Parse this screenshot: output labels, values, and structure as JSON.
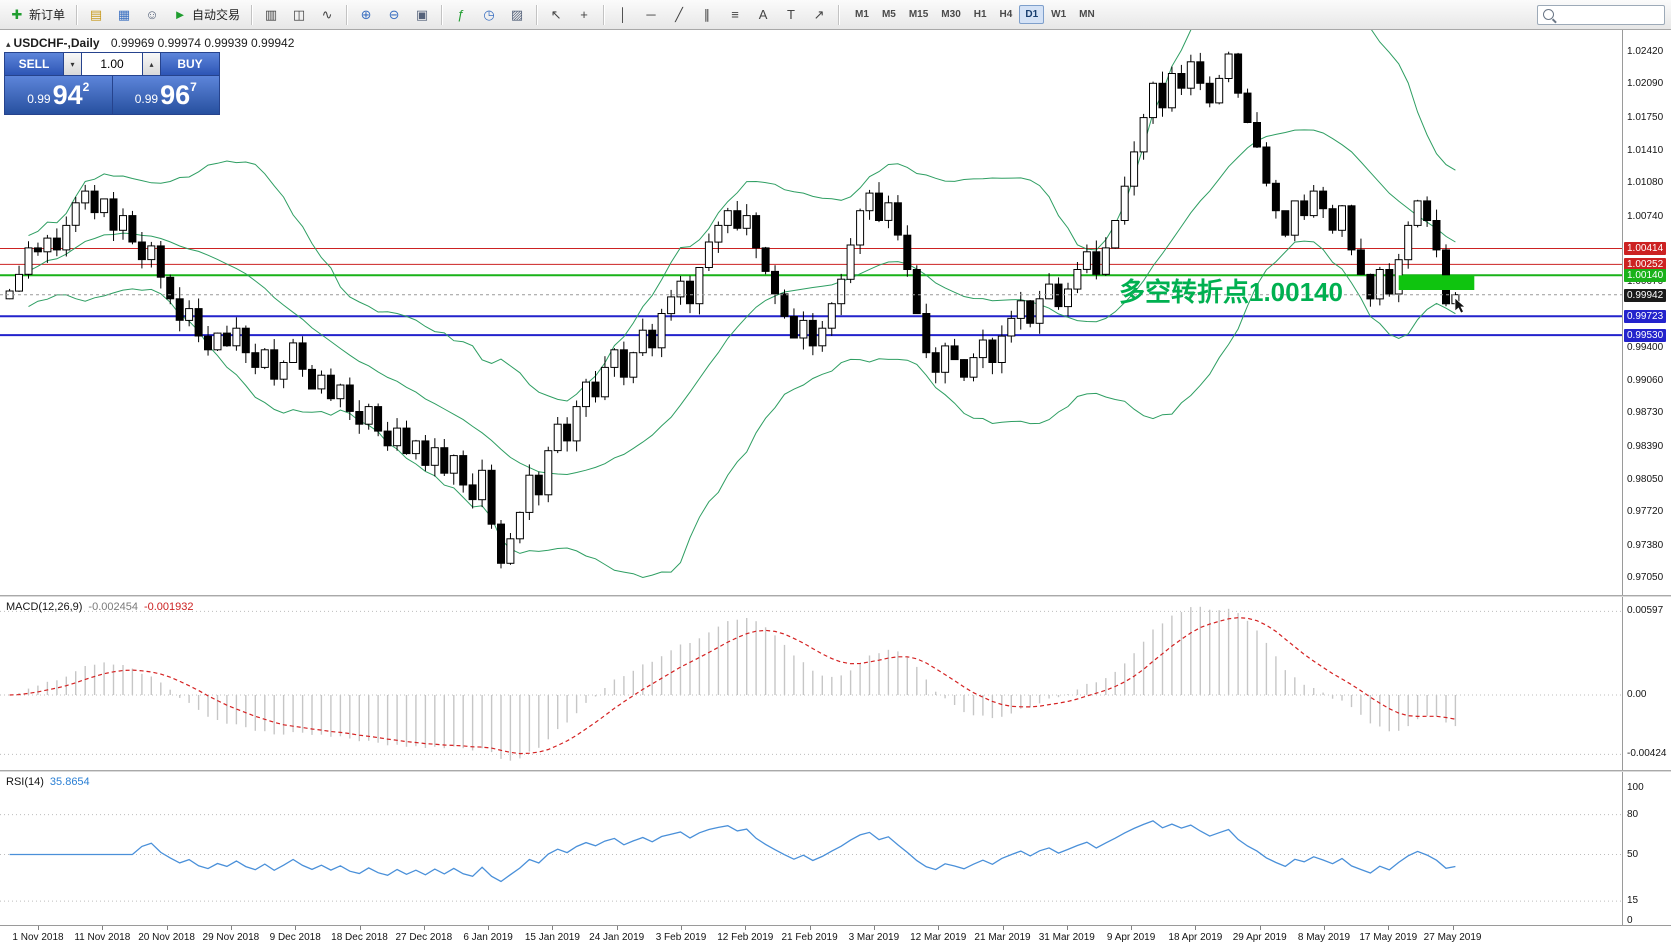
{
  "toolbar": {
    "new_order_label": "新订单",
    "auto_trading_label": "自动交易",
    "timeframes": [
      "M1",
      "M5",
      "M15",
      "M30",
      "H1",
      "H4",
      "D1",
      "W1",
      "MN"
    ],
    "active_timeframe": "D1"
  },
  "icons": {
    "new_order": "✚",
    "market_watch": "▤",
    "data_window": "▦",
    "navigator": "☺",
    "auto_trading": "►",
    "bar_chart": "▥",
    "candlestick": "◫",
    "line_chart": "∿",
    "zoom_in": "⊕",
    "zoom_out": "⊖",
    "tile_windows": "▣",
    "indicators": "ƒ",
    "periods": "◷",
    "templates": "▨",
    "cursor": "↖",
    "crosshair": "+",
    "vline": "│",
    "hline": "─",
    "trendline": "╱",
    "channel": "∥",
    "fibonacci": "≡",
    "text_tool": "A",
    "label_tool": "T",
    "arrows_tool": "↗",
    "vol_down": "▾",
    "vol_up": "▴",
    "collapse": "▴"
  },
  "chart": {
    "symbol_label": "USDCHF-,Daily",
    "ohlc": "0.99969 0.99974 0.99939 0.99942"
  },
  "trade_panel": {
    "sell_label": "SELL",
    "buy_label": "BUY",
    "volume": "1.00",
    "bid": {
      "prefix": "0.99",
      "big": "94",
      "sup": "2"
    },
    "ask": {
      "prefix": "0.99",
      "big": "96",
      "sup": "7"
    }
  },
  "annotation": {
    "text": "多空转折点1.00140"
  },
  "price_axis": {
    "grid_labels": [
      {
        "price": 1.0242,
        "text": "1.02420"
      },
      {
        "price": 1.0209,
        "text": "1.02090"
      },
      {
        "price": 1.0175,
        "text": "1.01750"
      },
      {
        "price": 1.0141,
        "text": "1.01410"
      },
      {
        "price": 1.0108,
        "text": "1.01080"
      },
      {
        "price": 1.0074,
        "text": "1.00740"
      },
      {
        "price": 1.0007,
        "text": "1.00070"
      },
      {
        "price": 0.994,
        "text": "0.99400"
      },
      {
        "price": 0.9906,
        "text": "0.99060"
      },
      {
        "price": 0.9873,
        "text": "0.98730"
      },
      {
        "price": 0.9839,
        "text": "0.98390"
      },
      {
        "price": 0.9805,
        "text": "0.98050"
      },
      {
        "price": 0.9772,
        "text": "0.97720"
      },
      {
        "price": 0.9738,
        "text": "0.97380"
      },
      {
        "price": 0.9705,
        "text": "0.97050"
      }
    ],
    "line_labels": [
      {
        "price": 1.00414,
        "text": "1.00414",
        "color": "#cc2222"
      },
      {
        "price": 1.00252,
        "text": "1.00252",
        "color": "#cc2222"
      },
      {
        "price": 1.0014,
        "text": "1.00140",
        "color": "#19b219"
      },
      {
        "price": 0.99942,
        "text": "0.99942",
        "color": "#1a1a1a"
      },
      {
        "price": 0.99723,
        "text": "0.99723",
        "color": "#2323cc"
      },
      {
        "price": 0.9953,
        "text": "0.99530",
        "color": "#2323cc"
      }
    ]
  },
  "indicators": {
    "macd": {
      "label": "MACD(12,26,9)",
      "value1": "-0.002454",
      "value2": "-0.001932",
      "axis": [
        {
          "v": 0.00597,
          "text": "0.00597"
        },
        {
          "v": 0,
          "text": "0.00"
        },
        {
          "v": -0.00424,
          "text": "-0.00424"
        }
      ]
    },
    "rsi": {
      "label": "RSI(14)",
      "value": "35.8654",
      "axis": [
        {
          "v": 100,
          "text": "100"
        },
        {
          "v": 80,
          "text": "80"
        },
        {
          "v": 50,
          "text": "50"
        },
        {
          "v": 15,
          "text": "15"
        },
        {
          "v": 0,
          "text": "0"
        }
      ]
    }
  },
  "time_axis": {
    "labels": [
      "1 Nov 2018",
      "11 Nov 2018",
      "20 Nov 2018",
      "29 Nov 2018",
      "9 Dec 2018",
      "18 Dec 2018",
      "27 Dec 2018",
      "6 Jan 2019",
      "15 Jan 2019",
      "24 Jan 2019",
      "3 Feb 2019",
      "12 Feb 2019",
      "21 Feb 2019",
      "3 Mar 2019",
      "12 Mar 2019",
      "21 Mar 2019",
      "31 Mar 2019",
      "9 Apr 2019",
      "18 Apr 2019",
      "29 Apr 2019",
      "8 May 2019",
      "17 May 2019",
      "27 May 2019"
    ]
  },
  "chart_data": {
    "type": "candlestick",
    "symbol": "USDCHF-",
    "timeframe": "Daily",
    "price_range": {
      "top": 1.0242,
      "bottom": 0.9705
    },
    "current_price": 0.99942,
    "closes": [
      0.9998,
      1.0015,
      1.0042,
      1.0038,
      1.0052,
      1.004,
      1.0065,
      1.0088,
      1.01,
      1.0078,
      1.0092,
      1.006,
      1.0075,
      1.0048,
      1.003,
      1.0044,
      1.0012,
      0.999,
      0.9968,
      0.998,
      0.9952,
      0.9938,
      0.9955,
      0.9942,
      0.996,
      0.9935,
      0.992,
      0.9938,
      0.9908,
      0.9925,
      0.9945,
      0.9918,
      0.9898,
      0.9912,
      0.9888,
      0.9902,
      0.9875,
      0.9862,
      0.988,
      0.9855,
      0.984,
      0.9858,
      0.9832,
      0.9845,
      0.982,
      0.9838,
      0.9812,
      0.983,
      0.98,
      0.9785,
      0.9815,
      0.976,
      0.972,
      0.9745,
      0.9772,
      0.981,
      0.979,
      0.9835,
      0.9862,
      0.9845,
      0.988,
      0.9905,
      0.989,
      0.992,
      0.9938,
      0.991,
      0.9935,
      0.9958,
      0.994,
      0.9975,
      0.9992,
      1.0008,
      0.9985,
      1.0022,
      1.0048,
      1.0065,
      1.008,
      1.0062,
      1.0075,
      1.0042,
      1.0018,
      0.9995,
      0.9972,
      0.995,
      0.9968,
      0.9942,
      0.996,
      0.9985,
      1.001,
      1.0045,
      1.008,
      1.0098,
      1.007,
      1.0088,
      1.0055,
      1.002,
      0.9975,
      0.9935,
      0.9915,
      0.9942,
      0.9928,
      0.991,
      0.993,
      0.9948,
      0.9925,
      0.9952,
      0.997,
      0.9988,
      0.9965,
      0.999,
      1.0005,
      0.9982,
      1.0,
      1.002,
      1.0038,
      1.0015,
      1.0042,
      1.007,
      1.0105,
      1.014,
      1.0175,
      1.021,
      1.0185,
      1.022,
      1.0205,
      1.0232,
      1.021,
      1.019,
      1.0215,
      1.024,
      1.02,
      1.017,
      1.0145,
      1.0108,
      1.008,
      1.0055,
      1.009,
      1.0075,
      1.01,
      1.0082,
      1.006,
      1.0085,
      1.004,
      1.0015,
      0.999,
      1.002,
      0.9995,
      1.003,
      1.0065,
      1.009,
      1.007,
      1.004,
      0.9985,
      0.99942
    ],
    "hlines": [
      {
        "price": 1.00414,
        "color": "#cc2222",
        "width": 1
      },
      {
        "price": 1.00252,
        "color": "#cc2222",
        "width": 1
      },
      {
        "price": 1.0014,
        "color": "#19b219",
        "width": 2
      },
      {
        "price": 0.99723,
        "color": "#2323cc",
        "width": 2
      },
      {
        "price": 0.9953,
        "color": "#2323cc",
        "width": 2
      }
    ],
    "highlight_rect": {
      "price_top": 1.0014,
      "price_bottom": 0.9999,
      "bar_start": 147,
      "bar_end": 155,
      "color": "#0fc40f"
    },
    "bollinger": {
      "period": 20,
      "deviation": 2,
      "color": "#2e9e62"
    },
    "macd": {
      "fast": 12,
      "slow": 26,
      "signal": 9,
      "histogram_color": "#c6c6c6",
      "signal_color": "#d42222"
    },
    "rsi": {
      "period": 14,
      "color": "#4a90d9",
      "levels": [
        80,
        50,
        15
      ]
    }
  },
  "colors": {
    "candle_up": "#ffffff",
    "candle_down": "#000000",
    "candle_outline": "#000000",
    "current_price_line": "#9a9a9a",
    "annotation_green": "#00b050",
    "trade_blue": "#3a66c8"
  }
}
